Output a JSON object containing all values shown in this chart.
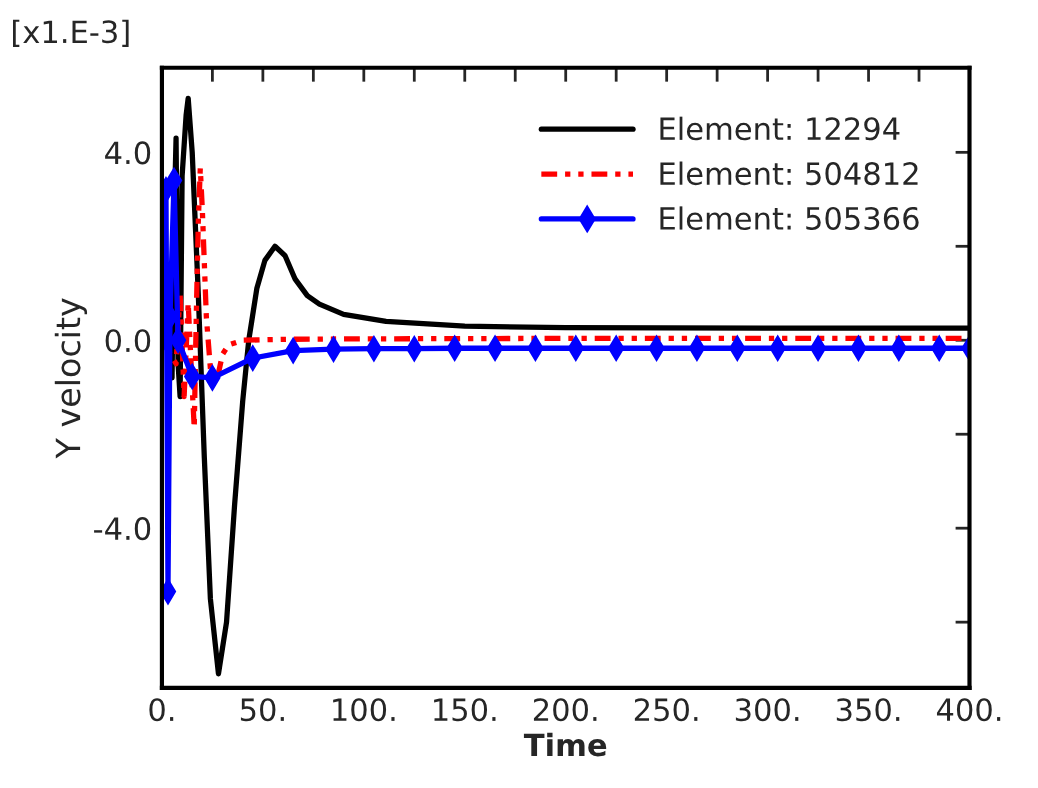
{
  "chart_data": {
    "type": "line",
    "xlabel": "Time",
    "ylabel": "Y velocity",
    "annotations": [
      "[x1.E-3]"
    ],
    "xlim": [
      0,
      400
    ],
    "xticks": [
      {
        "value": 0,
        "label": "0."
      },
      {
        "value": 25,
        "label": null
      },
      {
        "value": 50,
        "label": "50."
      },
      {
        "value": 75,
        "label": null
      },
      {
        "value": 100,
        "label": "100."
      },
      {
        "value": 125,
        "label": null
      },
      {
        "value": 150,
        "label": "150."
      },
      {
        "value": 175,
        "label": null
      },
      {
        "value": 200,
        "label": "200."
      },
      {
        "value": 225,
        "label": null
      },
      {
        "value": 250,
        "label": "250."
      },
      {
        "value": 275,
        "label": null
      },
      {
        "value": 300,
        "label": "300."
      },
      {
        "value": 325,
        "label": null
      },
      {
        "value": 350,
        "label": "350."
      },
      {
        "value": 375,
        "label": null
      },
      {
        "value": 400,
        "label": "400."
      }
    ],
    "ylim": [
      -7.4,
      5.8
    ],
    "yticks": [
      {
        "value": -6,
        "label": null
      },
      {
        "value": -4,
        "label": "-4.0"
      },
      {
        "value": -2,
        "label": null
      },
      {
        "value": 0,
        "label": "0.0"
      },
      {
        "value": 2,
        "label": null
      },
      {
        "value": 4,
        "label": "4.0"
      }
    ],
    "legend": "top right",
    "grid": false,
    "series": [
      {
        "name": "Element: 12294",
        "color": "#000000",
        "line_style": "solid",
        "marker": "none",
        "x": [
          0,
          3,
          5,
          6,
          7,
          8,
          9,
          10,
          12,
          13,
          15,
          18,
          21,
          24,
          28,
          32,
          36,
          40,
          43,
          47,
          51,
          56,
          61,
          66,
          72,
          78,
          90,
          111,
          150,
          200,
          300,
          400
        ],
        "values": [
          0,
          0.5,
          -0.8,
          2.5,
          4.3,
          -0.5,
          -1.2,
          3.5,
          4.8,
          5.15,
          4.0,
          1.0,
          -2.5,
          -5.5,
          -7.1,
          -6.0,
          -3.5,
          -1.3,
          0.0,
          1.1,
          1.7,
          2.0,
          1.8,
          1.3,
          0.95,
          0.77,
          0.55,
          0.4,
          0.3,
          0.27,
          0.26,
          0.26
        ]
      },
      {
        "name": "Element: 504812",
        "color": "#ff0000",
        "line_style": "dotted",
        "marker": "none",
        "x": [
          0,
          7,
          9,
          11,
          13,
          15,
          16,
          17,
          18,
          19,
          20,
          22,
          24,
          26,
          28,
          30,
          33,
          40,
          60,
          100,
          200,
          400
        ],
        "values": [
          0,
          -0.5,
          1.0,
          -1.2,
          0.8,
          -1.0,
          -1.87,
          0.5,
          2.5,
          3.66,
          2.8,
          0.5,
          -0.6,
          -0.9,
          -0.7,
          -0.3,
          -0.1,
          0.0,
          0.02,
          0.03,
          0.04,
          0.04
        ]
      },
      {
        "name": "Element: 505366",
        "color": "#0000ff",
        "line_style": "solid",
        "marker": "diamond",
        "x": [
          0,
          2,
          3,
          4,
          6,
          8,
          15,
          25,
          45,
          65,
          85,
          105,
          125,
          145,
          165,
          185,
          205,
          225,
          245,
          265,
          285,
          305,
          325,
          345,
          365,
          385,
          400
        ],
        "values": [
          0,
          3.2,
          -5.35,
          0.5,
          3.4,
          0.0,
          -0.77,
          -0.8,
          -0.38,
          -0.22,
          -0.19,
          -0.18,
          -0.18,
          -0.17,
          -0.17,
          -0.17,
          -0.17,
          -0.17,
          -0.17,
          -0.17,
          -0.17,
          -0.17,
          -0.17,
          -0.17,
          -0.17,
          -0.17,
          -0.17
        ]
      }
    ]
  }
}
